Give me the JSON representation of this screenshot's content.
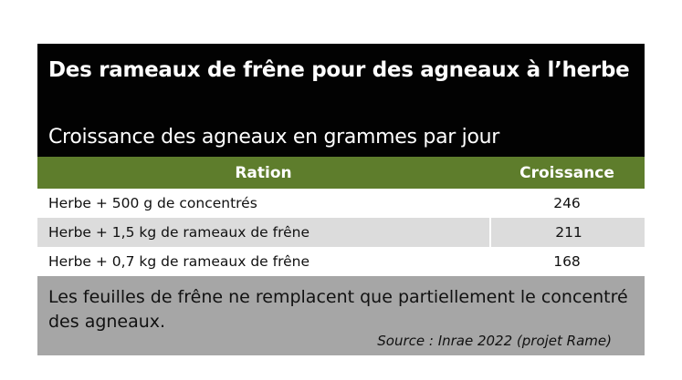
{
  "header": {
    "title": "Des rameaux de frêne pour des agneaux à l’herbe",
    "subtitle": "Croissance des agneaux en grammes par jour"
  },
  "chart_data": {
    "type": "table",
    "columns": [
      "Ration",
      "Croissance"
    ],
    "rows": [
      {
        "ration": "Herbe + 500 g de concentrés",
        "croissance": "246"
      },
      {
        "ration": "Herbe + 1,5 kg de rameaux de frêne",
        "croissance": "211"
      },
      {
        "ration": "Herbe + 0,7 kg de rameaux de frêne",
        "croissance": "168"
      }
    ],
    "unit": "grammes par jour"
  },
  "colors": {
    "header_bg": "#020202",
    "column_header_bg": "#5e7d2c",
    "alt_row_bg": "#dcdcdc",
    "footer_bg": "#a6a6a6"
  },
  "footer": {
    "note": "Les feuilles de frêne ne remplacent que partiellement le concentré des agneaux.",
    "source": "Source : Inrae 2022 (projet Rame)"
  }
}
